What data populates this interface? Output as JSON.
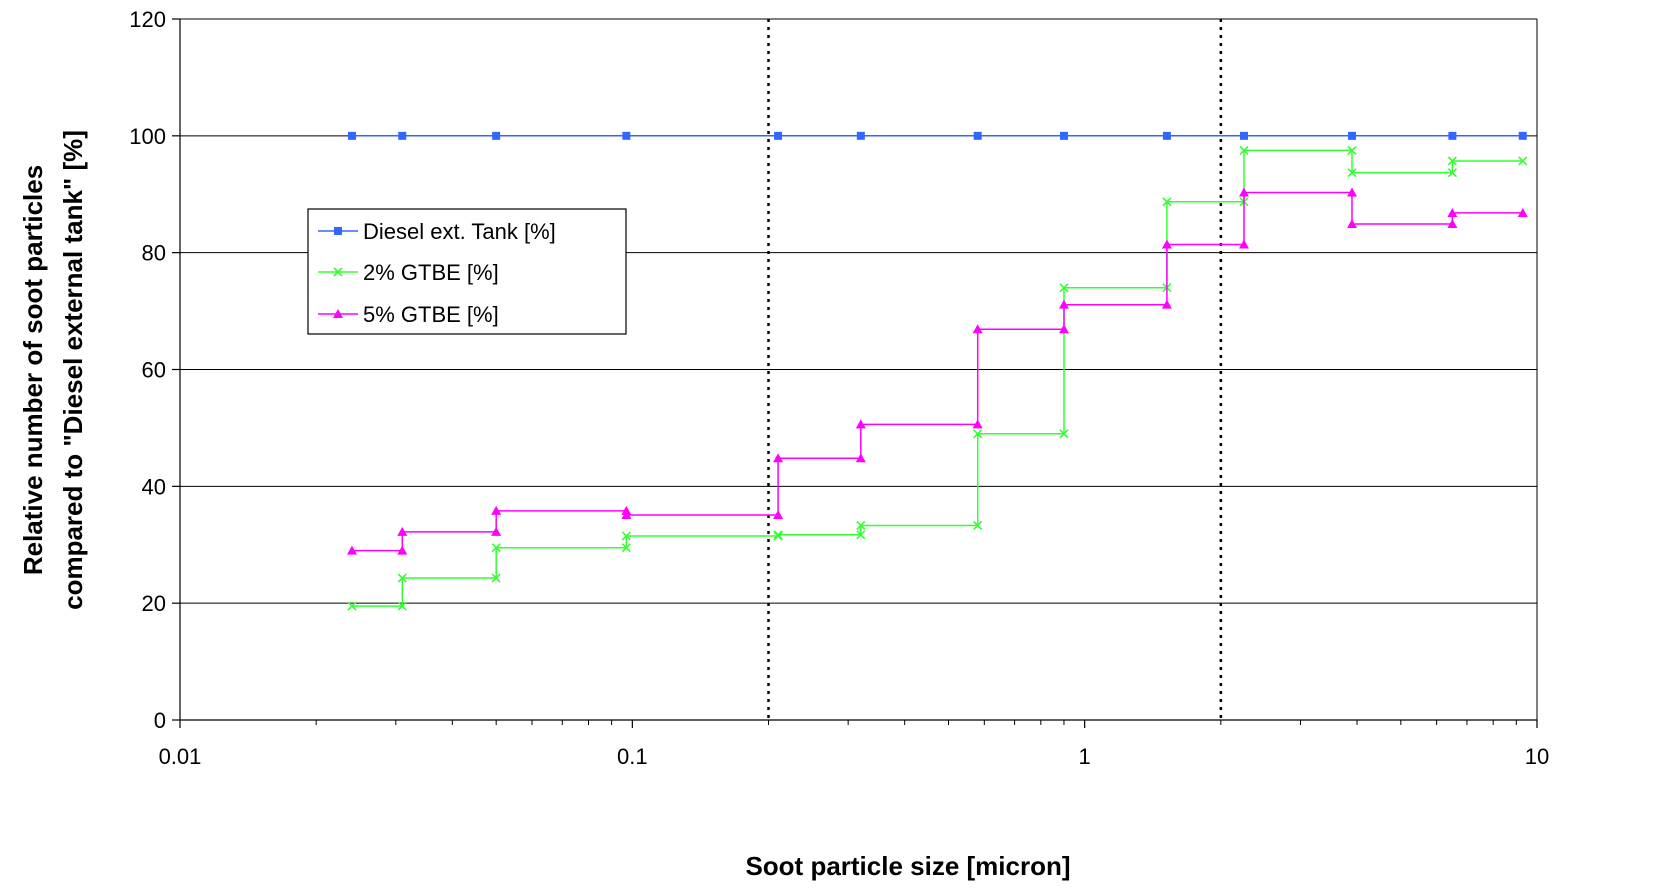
{
  "chart_data": {
    "type": "line",
    "title": "",
    "xlabel": "Soot particle size [micron]",
    "ylabel_line1": "Relative number of soot particles",
    "ylabel_line2": "compared to \"Diesel external tank\" [%]",
    "x_scale": "log",
    "xlim": [
      0.01,
      10
    ],
    "ylim": [
      0,
      120
    ],
    "x_ticks": [
      {
        "value": 0.01,
        "label": "0.01"
      },
      {
        "value": 0.1,
        "label": "0.1"
      },
      {
        "value": 1,
        "label": "1"
      },
      {
        "value": 10,
        "label": "10"
      }
    ],
    "y_ticks": [
      {
        "value": 0,
        "label": "0"
      },
      {
        "value": 20,
        "label": "20"
      },
      {
        "value": 40,
        "label": "40"
      },
      {
        "value": 60,
        "label": "60"
      },
      {
        "value": 80,
        "label": "80"
      },
      {
        "value": 100,
        "label": "100"
      },
      {
        "value": 120,
        "label": "120"
      }
    ],
    "grid": "horizontal",
    "reference_lines_x": [
      0.2,
      2.0
    ],
    "legend_position": "left, upper-middle",
    "series": [
      {
        "name": "Diesel ext. Tank [%]",
        "color": "#3366ff",
        "marker": "square",
        "step": false,
        "points": [
          [
            0.024,
            100
          ],
          [
            0.031,
            100
          ],
          [
            0.05,
            100
          ],
          [
            0.097,
            100
          ],
          [
            0.21,
            100
          ],
          [
            0.32,
            100
          ],
          [
            0.58,
            100
          ],
          [
            0.9,
            100
          ],
          [
            1.52,
            100
          ],
          [
            2.25,
            100
          ],
          [
            3.9,
            100
          ],
          [
            6.5,
            100
          ],
          [
            9.3,
            100
          ]
        ]
      },
      {
        "name": "2% GTBE [%]",
        "color": "#33ff33",
        "marker": "x",
        "step": true,
        "points": [
          [
            0.024,
            19.5
          ],
          [
            0.031,
            19.5
          ],
          [
            0.031,
            24.3
          ],
          [
            0.05,
            24.3
          ],
          [
            0.05,
            29.5
          ],
          [
            0.097,
            29.5
          ],
          [
            0.097,
            31.5
          ],
          [
            0.21,
            31.5
          ],
          [
            0.21,
            31.7
          ],
          [
            0.32,
            31.7
          ],
          [
            0.32,
            33.3
          ],
          [
            0.58,
            33.3
          ],
          [
            0.58,
            49
          ],
          [
            0.9,
            49
          ],
          [
            0.9,
            74
          ],
          [
            1.52,
            74
          ],
          [
            1.52,
            88.7
          ],
          [
            2.25,
            88.7
          ],
          [
            2.25,
            97.5
          ],
          [
            3.9,
            97.5
          ],
          [
            3.9,
            93.7
          ],
          [
            6.5,
            93.7
          ],
          [
            6.5,
            95.7
          ],
          [
            9.3,
            95.7
          ]
        ]
      },
      {
        "name": "5% GTBE [%]",
        "color": "#ff00ff",
        "marker": "triangle",
        "step": true,
        "points": [
          [
            0.024,
            29
          ],
          [
            0.031,
            29
          ],
          [
            0.031,
            32.2
          ],
          [
            0.05,
            32.2
          ],
          [
            0.05,
            35.8
          ],
          [
            0.097,
            35.8
          ],
          [
            0.097,
            35.1
          ],
          [
            0.21,
            35.1
          ],
          [
            0.21,
            44.8
          ],
          [
            0.32,
            44.8
          ],
          [
            0.32,
            50.6
          ],
          [
            0.58,
            50.6
          ],
          [
            0.58,
            66.9
          ],
          [
            0.9,
            66.9
          ],
          [
            0.9,
            71.1
          ],
          [
            1.52,
            71.1
          ],
          [
            1.52,
            81.4
          ],
          [
            2.25,
            81.4
          ],
          [
            2.25,
            90.3
          ],
          [
            3.9,
            90.3
          ],
          [
            3.9,
            84.9
          ],
          [
            6.5,
            84.9
          ],
          [
            6.5,
            86.8
          ],
          [
            9.3,
            86.8
          ]
        ]
      }
    ]
  }
}
